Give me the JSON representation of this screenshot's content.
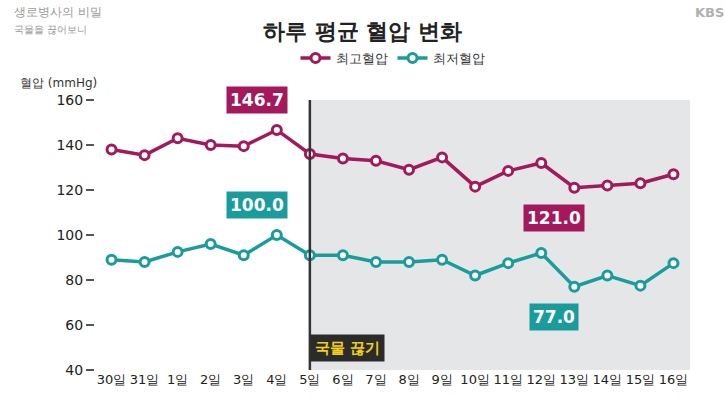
{
  "chart_data": {
    "type": "line",
    "title": "하루 평균 혈압 변화",
    "y_label": "혈압 (mmHg)",
    "caption": [
      "생로병사의 비밀",
      "국물을 끊어보니"
    ],
    "logo": "KBS",
    "categories": [
      "30일",
      "31일",
      "1일",
      "2일",
      "3일",
      "4일",
      "5일",
      "6일",
      "7일",
      "8일",
      "9일",
      "10일",
      "11일",
      "12일",
      "13일",
      "14일",
      "15일",
      "16일"
    ],
    "series": [
      {
        "name": "최고혈압",
        "color": "#a3195b",
        "marker": "circle",
        "values": [
          138,
          135.5,
          143,
          140,
          139.5,
          146.7,
          136,
          134,
          133,
          129,
          134.5,
          121.5,
          128.5,
          132,
          121.0,
          122,
          123,
          127
        ]
      },
      {
        "name": "최저혈압",
        "color": "#1a9c9c",
        "marker": "circle",
        "values": [
          89,
          88,
          92.5,
          96,
          91,
          100.0,
          91,
          91,
          88,
          88,
          89,
          82,
          87.5,
          92,
          77.0,
          82,
          77.5,
          87.5
        ]
      }
    ],
    "annotations": [
      {
        "series": "최고혈압",
        "category": "4일",
        "text": "146.7"
      },
      {
        "series": "최저혈압",
        "category": "4일",
        "text": "100.0"
      },
      {
        "series": "최고혈압",
        "category": "13일",
        "text": "121.0"
      },
      {
        "series": "최저혈압",
        "category": "13일",
        "text": "77.0"
      }
    ],
    "event": {
      "category": "5일",
      "text": "국물 끊기"
    },
    "ylim": [
      40,
      160
    ],
    "yticks": [
      40,
      60,
      80,
      100,
      120,
      140,
      160
    ],
    "grid": false,
    "legend": "top"
  }
}
